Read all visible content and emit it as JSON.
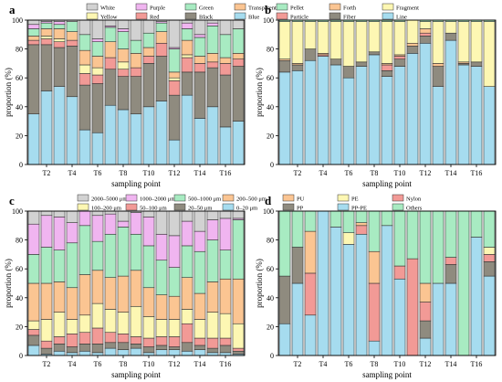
{
  "chart_data": [
    {
      "panel": "a",
      "type": "bar",
      "stacked": true,
      "xlabel": "sampling point",
      "ylabel": "proportion (%)",
      "ylim": [
        0,
        100
      ],
      "yticks": [
        0,
        20,
        40,
        60,
        80,
        100
      ],
      "grid": false,
      "legend_position": "top",
      "legend_columns": 4,
      "tick_labels": [
        "T2",
        "T4",
        "T6",
        "T8",
        "T10",
        "T12",
        "T14",
        "T16"
      ],
      "tick_positions": [
        2,
        4,
        6,
        8,
        10,
        12,
        14,
        16
      ],
      "categories": [
        "1",
        "2",
        "3",
        "4",
        "5",
        "6",
        "7",
        "8",
        "9",
        "10",
        "11",
        "12",
        "13",
        "14",
        "15",
        "16",
        "17"
      ],
      "legend": [
        "White",
        "Purple",
        "Green",
        "Transparent",
        "Yellow",
        "Red",
        "Black",
        "Blue"
      ],
      "series": [
        {
          "name": "Blue",
          "color": "#a6dcef",
          "values": [
            35,
            51,
            54,
            47,
            24,
            22,
            41,
            38,
            35,
            40,
            44,
            17,
            48,
            32,
            40,
            26,
            30
          ]
        },
        {
          "name": "Black",
          "color": "#8f8b7f",
          "values": [
            48,
            32,
            27,
            35,
            31,
            34,
            25,
            23,
            26,
            30,
            31,
            31,
            16,
            32,
            27,
            36,
            38
          ]
        },
        {
          "name": "Red",
          "color": "#f29a96",
          "values": [
            3,
            4,
            4,
            4,
            8,
            6,
            8,
            5,
            6,
            5,
            9,
            10,
            10,
            6,
            4,
            8,
            5
          ]
        },
        {
          "name": "Yellow",
          "color": "#fdf7b3",
          "values": [
            0,
            2,
            2,
            0,
            6,
            5,
            0,
            5,
            0,
            0,
            0,
            2,
            2,
            0,
            0,
            0,
            0
          ]
        },
        {
          "name": "Transparent",
          "color": "#fbc592",
          "values": [
            3,
            5,
            7,
            6,
            10,
            8,
            11,
            9,
            10,
            6,
            8,
            4,
            10,
            5,
            6,
            4,
            4
          ]
        },
        {
          "name": "Green",
          "color": "#a8ebc2",
          "values": [
            5,
            4,
            3,
            7,
            11,
            10,
            10,
            12,
            9,
            10,
            6,
            16,
            8,
            13,
            19,
            16,
            17
          ]
        },
        {
          "name": "Purple",
          "color": "#f0b5f0",
          "values": [
            3,
            1,
            2,
            0,
            0,
            2,
            1,
            2,
            0,
            0,
            1,
            1,
            4,
            2,
            2,
            0,
            0
          ]
        },
        {
          "name": "White",
          "color": "#d2d2d2",
          "values": [
            3,
            1,
            1,
            1,
            10,
            13,
            4,
            6,
            14,
            9,
            1,
            19,
            2,
            10,
            2,
            10,
            6
          ]
        }
      ]
    },
    {
      "panel": "b",
      "type": "bar",
      "stacked": true,
      "xlabel": "sampling point",
      "ylabel": "proportion (%)",
      "ylim": [
        0,
        100
      ],
      "yticks": [
        0,
        20,
        40,
        60,
        80,
        100
      ],
      "grid": false,
      "legend_position": "top",
      "legend_columns": 3,
      "tick_labels": [
        "T2",
        "T4",
        "T6",
        "T8",
        "T10",
        "T12",
        "T14",
        "T16"
      ],
      "tick_positions": [
        2,
        4,
        6,
        8,
        10,
        12,
        14,
        16
      ],
      "categories": [
        "1",
        "2",
        "3",
        "4",
        "5",
        "6",
        "7",
        "8",
        "9",
        "10",
        "11",
        "12",
        "13",
        "14",
        "15",
        "16",
        "17"
      ],
      "legend": [
        "Pellet",
        "Forth",
        "Fragment",
        "Particle",
        "Fiber",
        "Line"
      ],
      "series": [
        {
          "name": "Line",
          "color": "#a6dcef",
          "values": [
            64,
            65,
            72,
            75,
            69,
            60,
            68,
            76,
            61,
            68,
            77,
            84,
            54,
            86,
            69,
            68,
            54
          ]
        },
        {
          "name": "Fiber",
          "color": "#8f8b7f",
          "values": [
            8,
            4,
            8,
            0,
            4,
            8,
            3,
            2,
            4,
            5,
            5,
            5,
            14,
            5,
            1,
            3,
            0
          ]
        },
        {
          "name": "Particle",
          "color": "#f29a96",
          "values": [
            0,
            0,
            0,
            1,
            0,
            0,
            0,
            0,
            4,
            2,
            0,
            2,
            0,
            0,
            0,
            0,
            0
          ]
        },
        {
          "name": "Forth",
          "color": "#fbc592",
          "values": [
            1,
            1,
            0,
            1,
            0,
            0,
            0,
            0,
            1,
            1,
            2,
            3,
            2,
            0,
            1,
            0,
            0
          ]
        },
        {
          "name": "Fragment",
          "color": "#fdf7b3",
          "values": [
            26,
            29,
            19,
            22,
            26,
            31,
            28,
            21,
            29,
            23,
            16,
            5,
            29,
            8,
            28,
            28,
            45
          ]
        },
        {
          "name": "Pellet",
          "color": "#a8ebc2",
          "values": [
            1,
            1,
            1,
            1,
            1,
            1,
            1,
            1,
            1,
            1,
            0,
            1,
            1,
            1,
            1,
            1,
            1
          ]
        }
      ]
    },
    {
      "panel": "c",
      "type": "bar",
      "stacked": true,
      "xlabel": "sampling point",
      "ylabel": "proportion (%)",
      "ylim": [
        0,
        100
      ],
      "yticks": [
        0,
        20,
        40,
        60,
        80,
        100
      ],
      "grid": false,
      "legend_position": "top",
      "legend_columns": 4,
      "tick_labels": [
        "T2",
        "T4",
        "T6",
        "T8",
        "T10",
        "T12",
        "T14",
        "T16"
      ],
      "tick_positions": [
        2,
        4,
        6,
        8,
        10,
        12,
        14,
        16
      ],
      "categories": [
        "1",
        "2",
        "3",
        "4",
        "5",
        "6",
        "7",
        "8",
        "9",
        "10",
        "11",
        "12",
        "13",
        "14",
        "15",
        "16",
        "17"
      ],
      "legend": [
        "2000–5000 μm",
        "1000–2000 μm",
        "500–1000 μm",
        "200–500 μm",
        "100–200 μm",
        "50–100 μm",
        "20–50 μm",
        "0–20 μm"
      ],
      "series": [
        {
          "name": "0–20 μm",
          "color": "#a6dcef",
          "values": [
            7,
            1,
            3,
            2,
            3,
            2,
            5,
            4,
            5,
            2,
            4,
            4,
            3,
            4,
            2,
            2,
            1
          ]
        },
        {
          "name": "20–50 μm",
          "color": "#8f8b7f",
          "values": [
            7,
            4,
            5,
            4,
            5,
            6,
            4,
            5,
            3,
            4,
            3,
            2,
            6,
            3,
            3,
            5,
            2
          ]
        },
        {
          "name": "50–100 μm",
          "color": "#f29a96",
          "values": [
            4,
            5,
            5,
            9,
            8,
            11,
            7,
            6,
            5,
            6,
            6,
            7,
            13,
            5,
            7,
            5,
            2
          ]
        },
        {
          "name": "100–200 μm",
          "color": "#fdf7b3",
          "values": [
            6,
            15,
            17,
            10,
            12,
            17,
            16,
            15,
            21,
            15,
            12,
            12,
            10,
            13,
            18,
            17,
            17
          ]
        },
        {
          "name": "200–500 μm",
          "color": "#fbc592",
          "values": [
            26,
            25,
            21,
            22,
            28,
            23,
            22,
            25,
            25,
            20,
            17,
            16,
            22,
            18,
            21,
            24,
            31
          ]
        },
        {
          "name": "500–1000 μm",
          "color": "#a8ebc2",
          "values": [
            20,
            25,
            22,
            31,
            34,
            20,
            30,
            34,
            25,
            29,
            24,
            20,
            22,
            29,
            29,
            20,
            41
          ]
        },
        {
          "name": "1000–2000 μm",
          "color": "#f0b5f0",
          "values": [
            21,
            22,
            23,
            14,
            12,
            18,
            14,
            4,
            15,
            20,
            18,
            22,
            17,
            14,
            14,
            22,
            1
          ]
        },
        {
          "name": "2000–5000 μm",
          "color": "#d2d2d2",
          "values": [
            9,
            3,
            4,
            8,
            2,
            3,
            2,
            7,
            1,
            4,
            16,
            17,
            7,
            14,
            6,
            5,
            5
          ]
        }
      ]
    },
    {
      "panel": "d",
      "type": "bar",
      "stacked": true,
      "xlabel": "sampling point",
      "ylabel": "proportion (%)",
      "ylim": [
        0,
        100
      ],
      "yticks": [
        0,
        20,
        40,
        60,
        80,
        100
      ],
      "grid": false,
      "legend_position": "top",
      "legend_columns": 3,
      "tick_labels": [
        "T2",
        "T4",
        "T6",
        "T8",
        "T10",
        "T12",
        "T14",
        "T16"
      ],
      "tick_positions": [
        2,
        4,
        6,
        8,
        10,
        12,
        14,
        16
      ],
      "categories": [
        "1",
        "2",
        "3",
        "4",
        "5",
        "6",
        "7",
        "8",
        "9",
        "10",
        "11",
        "12",
        "13",
        "14",
        "15",
        "16",
        "17"
      ],
      "legend": [
        "PU",
        "PE",
        "Nylon",
        "PP",
        "PP-PE",
        "Others"
      ],
      "series": [
        {
          "name": "PP-PE",
          "color": "#a6dcef",
          "values": [
            22,
            50,
            28,
            100,
            89,
            77,
            84,
            10,
            90,
            53,
            0,
            12,
            50,
            50,
            0,
            82,
            55
          ]
        },
        {
          "name": "PP",
          "color": "#8f8b7f",
          "values": [
            33,
            25,
            0,
            0,
            0,
            0,
            0,
            0,
            0,
            0,
            0,
            12,
            0,
            13,
            0,
            0,
            10
          ]
        },
        {
          "name": "Nylon",
          "color": "#f29a96",
          "values": [
            0,
            0,
            29,
            0,
            0,
            0,
            6,
            40,
            0,
            9,
            67,
            13,
            0,
            5,
            0,
            0,
            5
          ]
        },
        {
          "name": "PE",
          "color": "#fdf7b3",
          "values": [
            0,
            0,
            0,
            0,
            0,
            8,
            0,
            0,
            0,
            0,
            0,
            0,
            0,
            0,
            0,
            0,
            5
          ]
        },
        {
          "name": "PU",
          "color": "#fbc592",
          "values": [
            0,
            0,
            29,
            0,
            0,
            0,
            2,
            22,
            0,
            0,
            0,
            13,
            0,
            0,
            0,
            0,
            0
          ]
        },
        {
          "name": "Others",
          "color": "#a8ebc2",
          "values": [
            45,
            25,
            14,
            0,
            11,
            15,
            8,
            28,
            10,
            38,
            33,
            50,
            50,
            32,
            100,
            18,
            25
          ]
        }
      ]
    }
  ]
}
